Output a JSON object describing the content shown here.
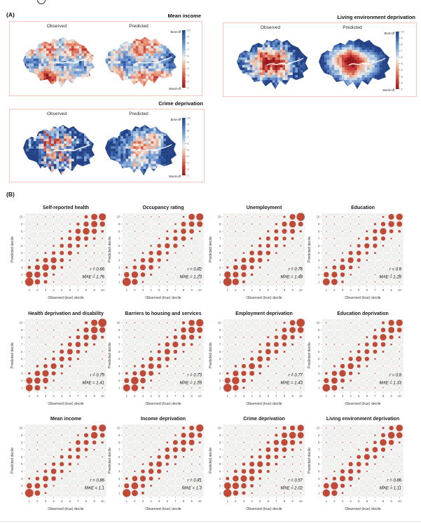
{
  "figure": {
    "panel_a_label": "(A)",
    "panel_b_label": "(B)"
  },
  "panel_a": {
    "observed_label": "Observed",
    "predicted_label": "Predicted",
    "colorbar": {
      "top_label": "Best-off",
      "bottom_label": "Worst-off",
      "ticks": [
        10,
        9,
        8,
        7,
        6,
        5,
        4,
        3,
        2,
        1
      ]
    },
    "maps": [
      {
        "title": "Mean income",
        "style": "mixed"
      },
      {
        "title": "Living environment deprivation",
        "style": "radial"
      },
      {
        "title": "Crime deprivation",
        "style": "scatter"
      }
    ]
  },
  "panel_b": {
    "x_label": "Observed (true) decile",
    "y_label": "Predicted decile",
    "x_ticks": [
      1,
      2,
      3,
      4,
      5,
      6,
      7,
      8,
      9,
      10
    ],
    "y_ticks": [
      10,
      9,
      8,
      7,
      6,
      5,
      4,
      3,
      2,
      1
    ],
    "plots": [
      {
        "title": "Self-reported health",
        "r": 0.66,
        "mae": 1.76
      },
      {
        "title": "Occupancy rating",
        "r": 0.82,
        "mae": 1.23
      },
      {
        "title": "Unemployment",
        "r": 0.76,
        "mae": 1.48
      },
      {
        "title": "Education",
        "r": 0.8,
        "mae": 1.28
      },
      {
        "title": "Health deprivation and disability",
        "r": 0.79,
        "mae": 1.41
      },
      {
        "title": "Barriers to housing and services",
        "r": 0.73,
        "mae": 1.59
      },
      {
        "title": "Employment deprivation",
        "r": 0.77,
        "mae": 1.43
      },
      {
        "title": "Education deprivation",
        "r": 0.8,
        "mae": 1.33
      },
      {
        "title": "Mean income",
        "r": 0.86,
        "mae": 1.1
      },
      {
        "title": "Income deprivation",
        "r": 0.81,
        "mae": 1.3
      },
      {
        "title": "Crime deprivation",
        "r": 0.57,
        "mae": 2.02
      },
      {
        "title": "Living environment deprivation",
        "r": 0.86,
        "mae": 1.11
      }
    ]
  },
  "colors": {
    "bubble": "#bf4a38",
    "plot_bg": "#f0f0ef",
    "map_box_border": "#f3c7bd",
    "worst_red": "#941c1c",
    "best_blue": "#23428a"
  },
  "chart_data": [
    {
      "type": "heatmap",
      "subtype": "choropleth_map_pairs",
      "title": "Panel A: observed vs predicted decile maps of Greater London",
      "maps": [
        {
          "title": "Mean income",
          "panels": [
            "Observed",
            "Predicted"
          ]
        },
        {
          "title": "Living environment deprivation",
          "panels": [
            "Observed",
            "Predicted"
          ]
        },
        {
          "title": "Crime deprivation",
          "panels": [
            "Observed",
            "Predicted"
          ]
        }
      ],
      "colorbar": {
        "range": [
          1,
          10
        ],
        "ticks": [
          1,
          2,
          3,
          4,
          5,
          6,
          7,
          8,
          9,
          10
        ],
        "bottom_label": "Worst-off",
        "top_label": "Best-off",
        "palette": "red (1, worst-off) through light grey to blue (10, best-off)"
      }
    },
    {
      "type": "scatter",
      "subtype": "bubble_matrix_grid",
      "title": "Panel B: observed vs predicted deciles, bubble size = share of areas",
      "xlabel": "Observed (true) decile",
      "ylabel": "Predicted decile",
      "x_range": [
        1,
        10
      ],
      "y_range": [
        1,
        10
      ],
      "grid": "on",
      "encoding": "10x10 bubble matrix; mass concentrated along the 1:1 diagonal; annotations give Pearson r and MAE",
      "plots": [
        {
          "title": "Self-reported health",
          "r": 0.66,
          "MAE": 1.76
        },
        {
          "title": "Occupancy rating",
          "r": 0.82,
          "MAE": 1.23
        },
        {
          "title": "Unemployment",
          "r": 0.76,
          "MAE": 1.48
        },
        {
          "title": "Education",
          "r": 0.8,
          "MAE": 1.28
        },
        {
          "title": "Health deprivation and disability",
          "r": 0.79,
          "MAE": 1.41
        },
        {
          "title": "Barriers to housing and services",
          "r": 0.73,
          "MAE": 1.59
        },
        {
          "title": "Employment deprivation",
          "r": 0.77,
          "MAE": 1.43
        },
        {
          "title": "Education deprivation",
          "r": 0.8,
          "MAE": 1.33
        },
        {
          "title": "Mean income",
          "r": 0.86,
          "MAE": 1.1
        },
        {
          "title": "Income deprivation",
          "r": 0.81,
          "MAE": 1.3
        },
        {
          "title": "Crime deprivation",
          "r": 0.57,
          "MAE": 2.02
        },
        {
          "title": "Living environment deprivation",
          "r": 0.86,
          "MAE": 1.11
        }
      ]
    }
  ]
}
